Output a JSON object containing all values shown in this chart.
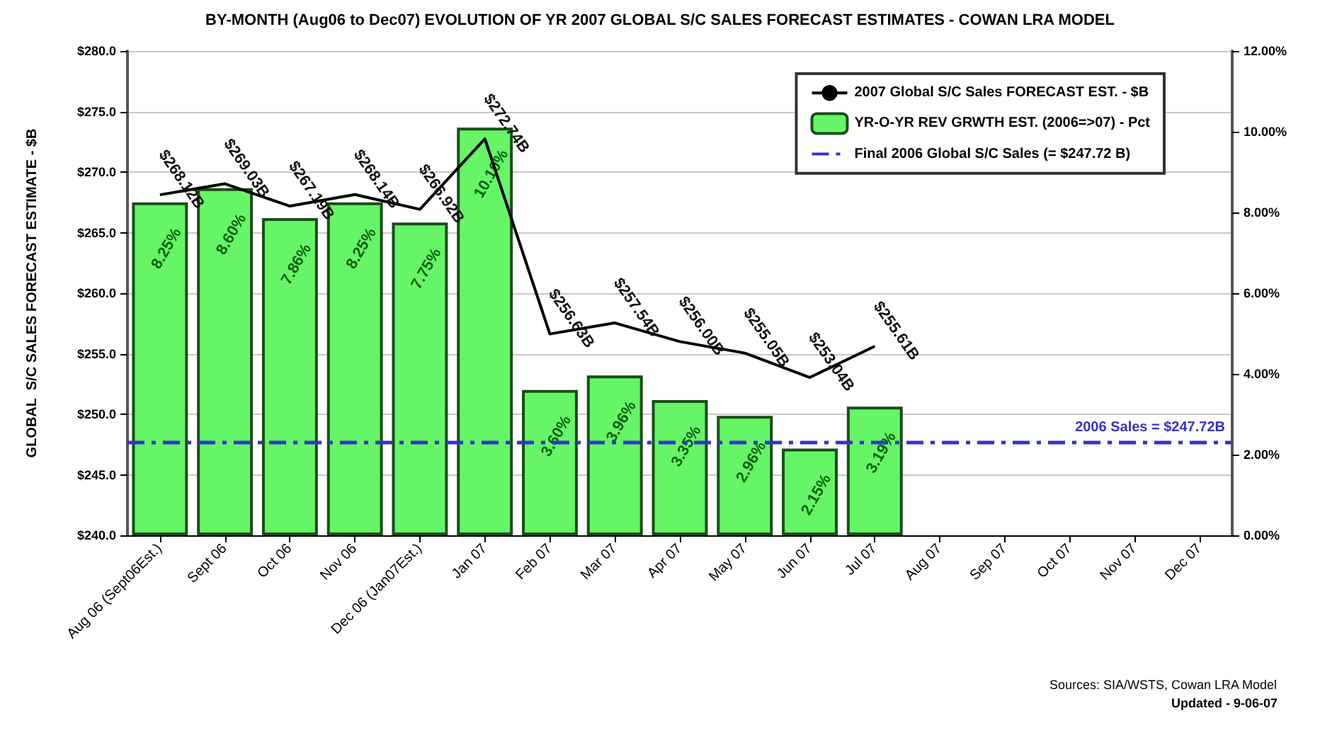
{
  "chart_data": {
    "type": "bar",
    "title": "BY-MONTH (Aug06 to Dec07) EVOLUTION OF YR 2007 GLOBAL S/C SALES FORECAST ESTIMATES - COWAN LRA MODEL",
    "ylabel": "GLOBAL  S/C SALES FORECAST ESTIMATE - $B",
    "categories": [
      "Aug 06 (Sept06Est.)",
      "Sept 06",
      "Oct 06",
      "Nov 06",
      "Dec 06 (Jan07Est.)",
      "Jan 07",
      "Feb 07",
      "Mar 07",
      "Apr 07",
      "May 07",
      "Jun 07",
      "Jul 07",
      "Aug 07",
      "Sep 07",
      "Oct 07",
      "Nov 07",
      "Dec 07"
    ],
    "series": [
      {
        "name": "2007 Global S/C Sales FORECAST EST. - $B",
        "type": "line",
        "color": "#000000",
        "values": [
          268.12,
          269.03,
          267.19,
          268.14,
          266.92,
          272.74,
          256.63,
          257.54,
          256.0,
          255.05,
          253.04,
          255.61,
          null,
          null,
          null,
          null,
          null
        ],
        "value_labels": [
          "$268.12B",
          "$269.03B",
          "$267.19B",
          "$268.14B",
          "$266.92B",
          "$272.74B",
          "$256.63B",
          "$257.54B",
          "$256.00B",
          "$255.05B",
          "$253.04B",
          "$255.61B",
          null,
          null,
          null,
          null,
          null
        ]
      },
      {
        "name": "YR-O-YR REV GRWTH EST. (2006=>07) - Pct",
        "axis": "y2",
        "color": "#66f566",
        "values": [
          8.25,
          8.6,
          7.86,
          8.25,
          7.75,
          10.1,
          3.6,
          3.96,
          3.35,
          2.96,
          2.15,
          3.19,
          null,
          null,
          null,
          null,
          null
        ],
        "value_labels": [
          "8.25%",
          "8.60%",
          "7.86%",
          "8.25%",
          "7.75%",
          "10.10%",
          "3.60%",
          "3.96%",
          "3.35%",
          "2.96%",
          "2.15%",
          "3.19%",
          null,
          null,
          null,
          null,
          null
        ]
      }
    ],
    "ref_lines": [
      {
        "axis": "y",
        "value": 247.72,
        "label": "2006 Sales = $247.72B",
        "color": "#3333cc",
        "line_style": "dashdot"
      }
    ],
    "ylim": [
      240,
      280
    ],
    "yticks": [
      {
        "value": 240,
        "label": "$240.0"
      },
      {
        "value": 245,
        "label": "$245.0"
      },
      {
        "value": 250,
        "label": "$250.0"
      },
      {
        "value": 255,
        "label": "$255.0"
      },
      {
        "value": 260,
        "label": "$260.0"
      },
      {
        "value": 265,
        "label": "$265.0"
      },
      {
        "value": 270,
        "label": "$270.0"
      },
      {
        "value": 275,
        "label": "$275.0"
      },
      {
        "value": 280,
        "label": "$280.0"
      }
    ],
    "y2lim": [
      0,
      12
    ],
    "y2ticks": [
      {
        "value": 0,
        "label": "0.00%"
      },
      {
        "value": 2,
        "label": "2.00%"
      },
      {
        "value": 4,
        "label": "4.00%"
      },
      {
        "value": 6,
        "label": "6.00%"
      },
      {
        "value": 8,
        "label": "8.00%"
      },
      {
        "value": 10,
        "label": "10.00%"
      },
      {
        "value": 12,
        "label": "12.00%"
      }
    ],
    "grid": "y",
    "legend": "top right",
    "annotations": [
      "Final 2006 Global S/C Sales (= $247.72 B)",
      "Sources: SIA/WSTS, Cowan LRA Model",
      "Updated - 9-06-07"
    ]
  }
}
